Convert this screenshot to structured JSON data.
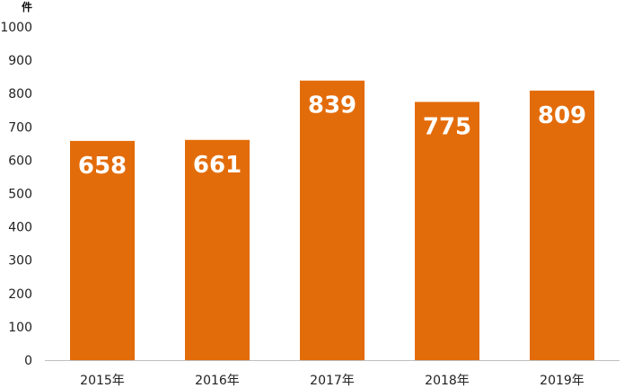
{
  "chart_data": {
    "type": "bar",
    "title": "",
    "xlabel": "",
    "ylabel": "",
    "y_unit_label": "件",
    "categories": [
      "2015年",
      "2016年",
      "2017年",
      "2018年",
      "2019年"
    ],
    "values": [
      658,
      661,
      839,
      775,
      809
    ],
    "data_labels": [
      "658",
      "661",
      "839",
      "775",
      "809"
    ],
    "ylim": [
      0,
      1000
    ],
    "y_ticks": [
      "0",
      "100",
      "200",
      "300",
      "400",
      "500",
      "600",
      "700",
      "800",
      "900",
      "1000"
    ],
    "grid": false,
    "legend": "none",
    "colors": {
      "bar": "#E36C0A",
      "bar_label": "#FFFFFF",
      "axis": "#BFBFBF",
      "text": "#222222"
    }
  }
}
